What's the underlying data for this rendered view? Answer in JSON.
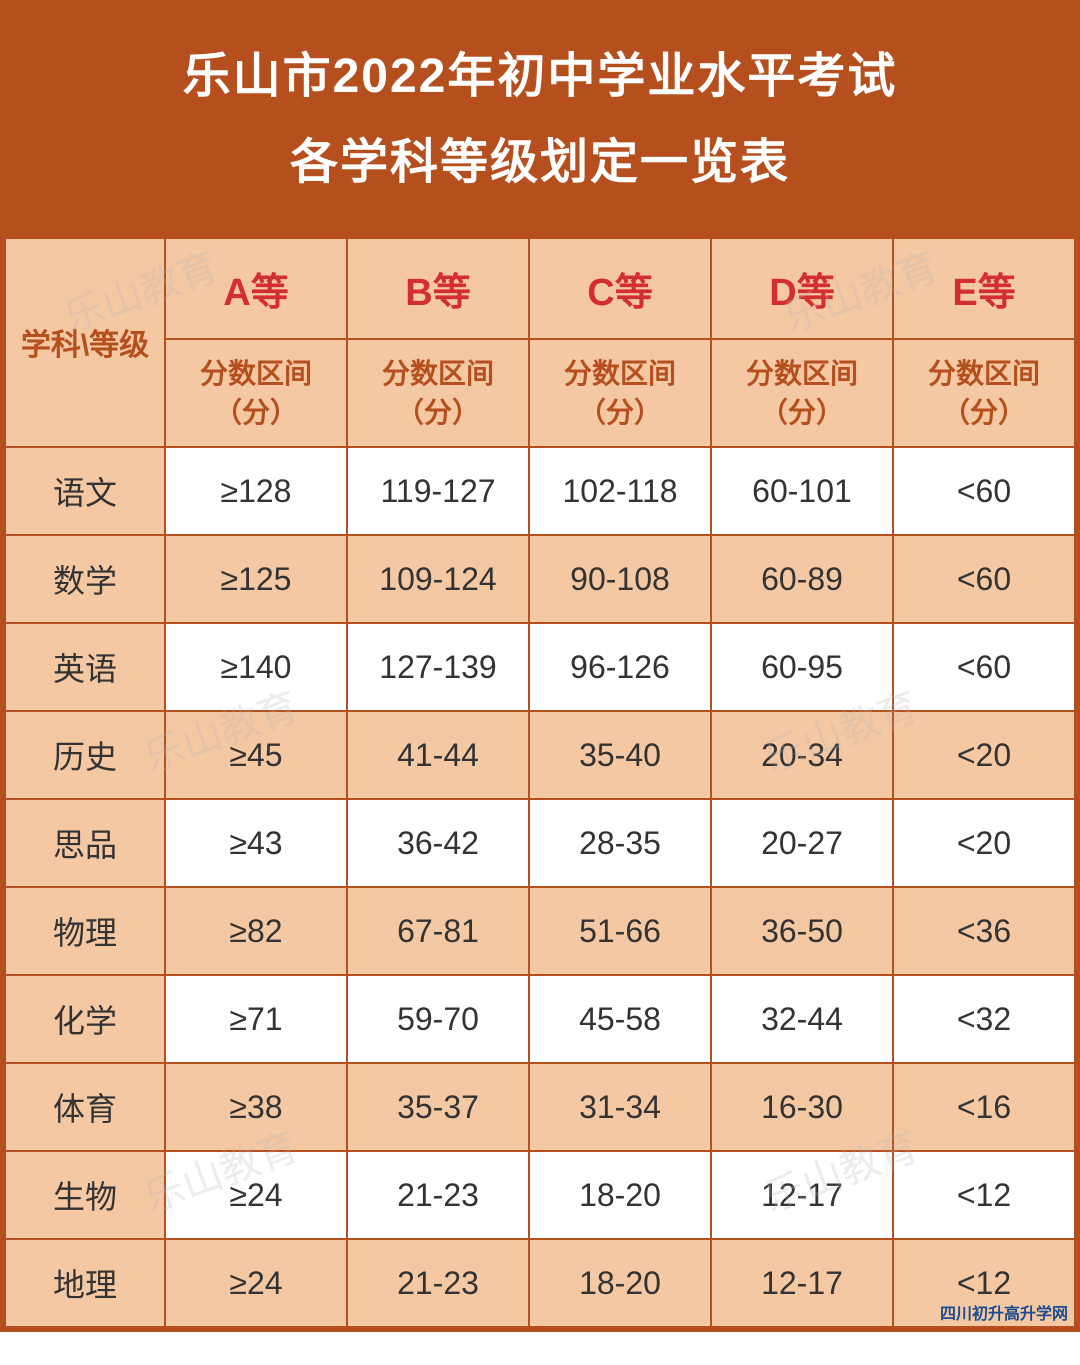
{
  "title": {
    "line1": "乐山市2022年初中学业水平考试",
    "line2": "各学科等级划定一览表"
  },
  "header": {
    "rowLabel": "学科\\等级",
    "grades": [
      "A等",
      "B等",
      "C等",
      "D等",
      "E等"
    ],
    "subLabel": "分数区间（分）"
  },
  "subjects": [
    {
      "name": "语文",
      "scores": [
        "≥128",
        "119-127",
        "102-118",
        "60-101",
        "<60"
      ]
    },
    {
      "name": "数学",
      "scores": [
        "≥125",
        "109-124",
        "90-108",
        "60-89",
        "<60"
      ]
    },
    {
      "name": "英语",
      "scores": [
        "≥140",
        "127-139",
        "96-126",
        "60-95",
        "<60"
      ]
    },
    {
      "name": "历史",
      "scores": [
        "≥45",
        "41-44",
        "35-40",
        "20-34",
        "<20"
      ]
    },
    {
      "name": "思品",
      "scores": [
        "≥43",
        "36-42",
        "28-35",
        "20-27",
        "<20"
      ]
    },
    {
      "name": "物理",
      "scores": [
        "≥82",
        "67-81",
        "51-66",
        "36-50",
        "<36"
      ]
    },
    {
      "name": "化学",
      "scores": [
        "≥71",
        "59-70",
        "45-58",
        "32-44",
        "<32"
      ]
    },
    {
      "name": "体育",
      "scores": [
        "≥38",
        "35-37",
        "31-34",
        "16-30",
        "<16"
      ]
    },
    {
      "name": "生物",
      "scores": [
        "≥24",
        "21-23",
        "18-20",
        "12-17",
        "<12"
      ]
    },
    {
      "name": "地理",
      "scores": [
        "≥24",
        "21-23",
        "18-20",
        "12-17",
        "<12"
      ]
    }
  ],
  "colors": {
    "primary": "#b54f1e",
    "headerBg": "#f5c8a4",
    "gradeText": "#d32f2f",
    "dataBgOdd": "#ffffff",
    "dataBgEven": "#f5c8a4",
    "textDark": "#333333",
    "titleText": "#ffffff"
  },
  "watermark": "乐山教育",
  "logo": "四川初升高升学网"
}
